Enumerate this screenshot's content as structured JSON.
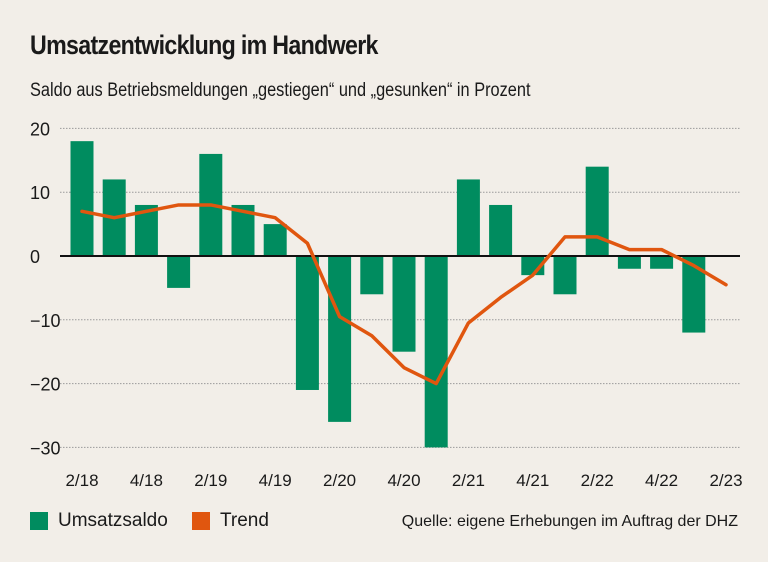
{
  "title": "Umsatzentwicklung im Handwerk",
  "subtitle": "Saldo aus Betriebsmeldungen „gestiegen“ und „gesunken“ in Prozent",
  "source": "Quelle: eigene Erhebungen im Auftrag der DHZ",
  "colors": {
    "bar": "#008c5f",
    "trend": "#e0560f",
    "background": "#f2eee8"
  },
  "chart_data": {
    "type": "bar",
    "categories": [
      "2/18",
      "3/18",
      "4/18",
      "1/19",
      "2/19",
      "3/19",
      "4/19",
      "1/20",
      "2/20",
      "3/20",
      "4/20",
      "1/21",
      "2/21",
      "3/21",
      "4/21",
      "1/22",
      "2/22",
      "3/22",
      "4/22",
      "1/23",
      "2/23"
    ],
    "x_tick_labels": [
      "2/18",
      "4/18",
      "2/19",
      "4/19",
      "2/20",
      "4/20",
      "2/21",
      "4/21",
      "2/22",
      "4/22",
      "2/23"
    ],
    "y_ticks": [
      20,
      10,
      0,
      -10,
      -20,
      -30
    ],
    "y_tick_labels": [
      "20",
      "10",
      "0",
      "−10",
      "−20",
      "−30"
    ],
    "ylim": [
      -30,
      20
    ],
    "grid": true,
    "legend": "bottom-left",
    "series": [
      {
        "name": "Umsatzsaldo",
        "type": "bar",
        "values": [
          18,
          12,
          8,
          -5,
          16,
          8,
          5,
          -21,
          -26,
          -6,
          -15,
          -30,
          12,
          8,
          -3,
          -6,
          14,
          -2,
          -2,
          -12,
          null
        ]
      },
      {
        "name": "Trend",
        "type": "line",
        "values": [
          7,
          6,
          7,
          8,
          8,
          7,
          6,
          2,
          -9.5,
          -12.5,
          -17.5,
          -20,
          -10.5,
          -6.5,
          -3,
          3,
          3,
          1,
          1,
          -1.5,
          -4.5
        ]
      }
    ]
  }
}
